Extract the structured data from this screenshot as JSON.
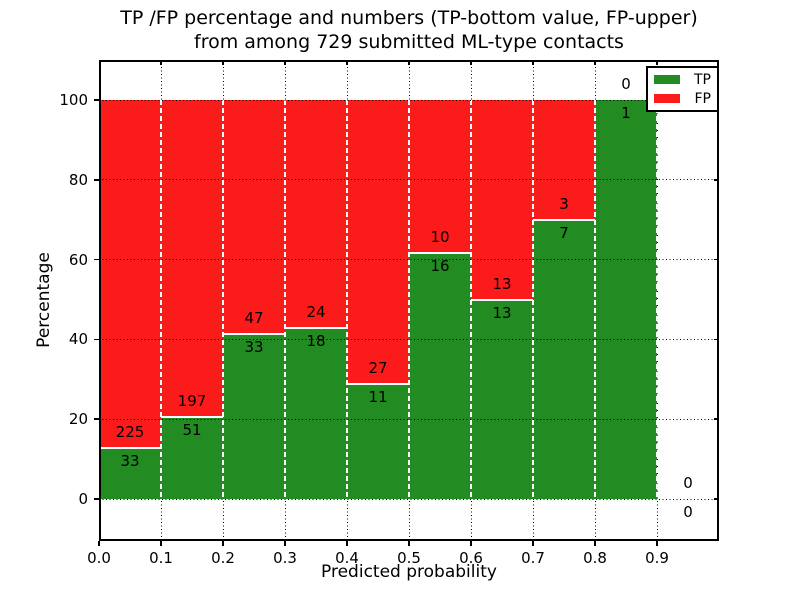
{
  "chart_data": {
    "type": "bar",
    "stacked": true,
    "title_line1": "TP /FP percentage and numbers (TP-bottom value, FP-upper)",
    "title_line2": "from among 729 submitted ML-type contacts",
    "xlabel": "Predicted probability",
    "ylabel": "Percentage",
    "x_ticks": [
      "0.0",
      "0.1",
      "0.2",
      "0.3",
      "0.4",
      "0.5",
      "0.6",
      "0.7",
      "0.8",
      "0.9"
    ],
    "y_ticks": [
      0,
      20,
      40,
      60,
      80,
      100
    ],
    "xlim": [
      0.0,
      1.0
    ],
    "ylim": [
      -10.5,
      110
    ],
    "bar_width": 0.1,
    "grid": true,
    "colors": {
      "tp": "#228b22",
      "fp": "#fb1b1b"
    },
    "legend": {
      "position": "upper right",
      "items": [
        {
          "label": "TP",
          "color_key": "tp"
        },
        {
          "label": "FP",
          "color_key": "fp"
        }
      ]
    },
    "bins": [
      {
        "x_start": 0.0,
        "x_end": 0.1,
        "tp": 33,
        "fp": 225
      },
      {
        "x_start": 0.1,
        "x_end": 0.2,
        "tp": 51,
        "fp": 197
      },
      {
        "x_start": 0.2,
        "x_end": 0.3,
        "tp": 33,
        "fp": 47
      },
      {
        "x_start": 0.3,
        "x_end": 0.4,
        "tp": 18,
        "fp": 24
      },
      {
        "x_start": 0.4,
        "x_end": 0.5,
        "tp": 11,
        "fp": 27
      },
      {
        "x_start": 0.5,
        "x_end": 0.6,
        "tp": 16,
        "fp": 10
      },
      {
        "x_start": 0.6,
        "x_end": 0.7,
        "tp": 13,
        "fp": 13
      },
      {
        "x_start": 0.7,
        "x_end": 0.8,
        "tp": 7,
        "fp": 3
      },
      {
        "x_start": 0.8,
        "x_end": 0.9,
        "tp": 1,
        "fp": 0
      },
      {
        "x_start": 0.9,
        "x_end": 1.0,
        "tp": 0,
        "fp": 0
      }
    ]
  }
}
